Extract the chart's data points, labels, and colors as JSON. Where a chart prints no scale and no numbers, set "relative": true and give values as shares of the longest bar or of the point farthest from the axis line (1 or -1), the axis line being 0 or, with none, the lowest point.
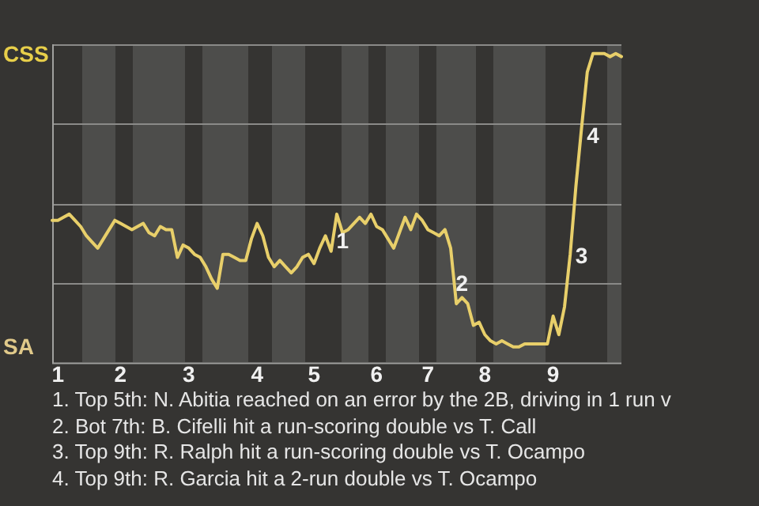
{
  "chart_data": {
    "type": "line",
    "relative": true,
    "categories": [
      null,
      "1",
      null,
      null,
      null,
      null,
      null,
      null,
      null,
      null,
      null,
      null,
      "2",
      null,
      null,
      null,
      null,
      null,
      null,
      null,
      null,
      null,
      null,
      null,
      "3",
      null,
      null,
      null,
      null,
      null,
      null,
      null,
      null,
      null,
      null,
      null,
      "4",
      null,
      null,
      null,
      null,
      null,
      null,
      null,
      null,
      null,
      "5",
      null,
      null,
      null,
      null,
      null,
      null,
      null,
      null,
      null,
      null,
      "6",
      null,
      null,
      null,
      null,
      null,
      null,
      null,
      null,
      "7",
      null,
      null,
      null,
      null,
      null,
      null,
      null,
      null,
      null,
      "8",
      null,
      null,
      null,
      null,
      null,
      null,
      null,
      null,
      null,
      null,
      null,
      "9",
      null,
      null,
      null,
      null,
      null,
      null,
      null,
      null,
      null,
      null,
      null,
      null
    ],
    "series": [
      {
        "color": "#e8cf6a",
        "values": [
          0.46,
          0.46,
          0.47,
          0.48,
          0.46,
          0.44,
          0.41,
          0.39,
          0.37,
          0.4,
          0.43,
          0.46,
          0.45,
          0.44,
          0.43,
          0.44,
          0.45,
          0.42,
          0.41,
          0.44,
          0.43,
          0.43,
          0.34,
          0.38,
          0.37,
          0.35,
          0.34,
          0.31,
          0.27,
          0.24,
          0.35,
          0.35,
          0.34,
          0.33,
          0.33,
          0.4,
          0.45,
          0.41,
          0.34,
          0.31,
          0.33,
          0.31,
          0.29,
          0.31,
          0.34,
          0.35,
          0.32,
          0.37,
          0.41,
          0.36,
          0.48,
          0.42,
          0.43,
          0.45,
          0.47,
          0.45,
          0.48,
          0.44,
          0.43,
          0.4,
          0.37,
          0.42,
          0.47,
          0.43,
          0.48,
          0.46,
          0.43,
          0.42,
          0.41,
          0.43,
          0.37,
          0.19,
          0.21,
          0.19,
          0.12,
          0.13,
          0.09,
          0.07,
          0.06,
          0.07,
          0.06,
          0.05,
          0.05,
          0.06,
          0.06,
          0.06,
          0.06,
          0.06,
          0.15,
          0.09,
          0.18,
          0.35,
          0.57,
          0.76,
          0.94,
          1,
          1,
          1,
          0.99,
          1,
          0.99
        ]
      }
    ],
    "grid": "y",
    "annotations": [
      "CSS",
      "SA",
      "1",
      "2",
      "3",
      "4",
      "1. Top 5th: N. Abitia reached on an error by the 2B, driving in 1 run v",
      "2. Bot 7th: B. Cifelli hit a run-scoring double vs T. Call",
      "3. Top 9th: R. Ralph hit a run-scoring double vs T. Ocampo",
      "4. Top 9th: R. Garcia hit a 2-run double vs T. Ocampo"
    ]
  }
}
